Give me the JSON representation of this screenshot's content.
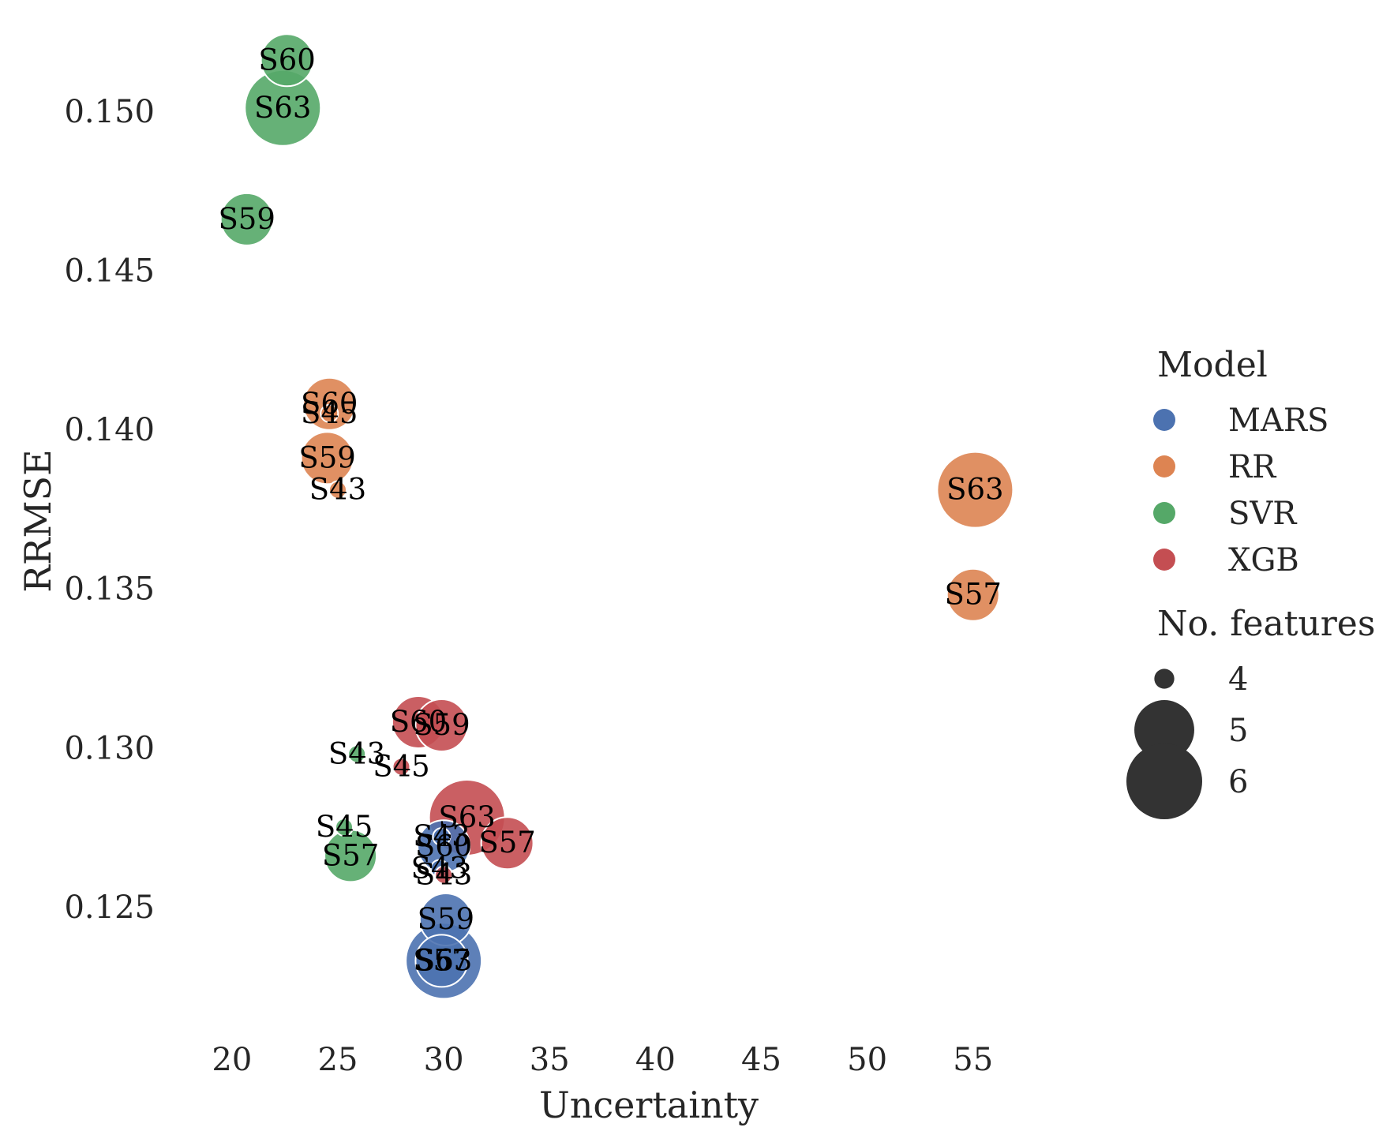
{
  "chart_data": {
    "type": "scatter",
    "xlabel": "Uncertainty",
    "ylabel": "RRMSE",
    "xlim": [
      16.5,
      59
    ],
    "ylim": [
      0.1215,
      0.1525
    ],
    "xticks": [
      "20",
      "25",
      "30",
      "35",
      "40",
      "45",
      "50",
      "55"
    ],
    "yticks": [
      "0.125",
      "0.130",
      "0.135",
      "0.140",
      "0.145",
      "0.150"
    ],
    "grid": false,
    "legend": {
      "placement": "right",
      "hue_title": "Model",
      "size_title": "No. features",
      "models": [
        {
          "name": "MARS",
          "color": "#4c72b0"
        },
        {
          "name": "RR",
          "color": "#dd8452"
        },
        {
          "name": "SVR",
          "color": "#55a868"
        },
        {
          "name": "XGB",
          "color": "#c44e52"
        }
      ],
      "sizes": [
        {
          "label": "4",
          "value": 4
        },
        {
          "label": "5",
          "value": 5
        },
        {
          "label": "6",
          "value": 6
        }
      ]
    },
    "series": [
      {
        "name": "MARS",
        "points": [
          {
            "label": "S43",
            "x": 29.9,
            "y": 0.1272,
            "features": 4
          },
          {
            "label": "S60",
            "x": 30.0,
            "y": 0.1269,
            "features": 5
          },
          {
            "label": "S43",
            "x": 29.8,
            "y": 0.1262,
            "features": 4
          },
          {
            "label": "S59",
            "x": 30.1,
            "y": 0.1246,
            "features": 5
          },
          {
            "label": "S63",
            "x": 30.0,
            "y": 0.1233,
            "features": 6
          },
          {
            "label": "S57",
            "x": 29.9,
            "y": 0.1233,
            "features": 5
          }
        ]
      },
      {
        "name": "RR",
        "points": [
          {
            "label": "S60",
            "x": 24.6,
            "y": 0.1408,
            "features": 5
          },
          {
            "label": "S45",
            "x": 24.6,
            "y": 0.1405,
            "features": 4
          },
          {
            "label": "S59",
            "x": 24.5,
            "y": 0.1391,
            "features": 5
          },
          {
            "label": "S43",
            "x": 25.0,
            "y": 0.1381,
            "features": 4
          },
          {
            "label": "S63",
            "x": 55.1,
            "y": 0.1381,
            "features": 6
          },
          {
            "label": "S57",
            "x": 55.0,
            "y": 0.1348,
            "features": 5
          }
        ]
      },
      {
        "name": "SVR",
        "points": [
          {
            "label": "S60",
            "x": 22.6,
            "y": 0.1516,
            "features": 5
          },
          {
            "label": "S63",
            "x": 22.4,
            "y": 0.1501,
            "features": 6
          },
          {
            "label": "S59",
            "x": 20.7,
            "y": 0.1466,
            "features": 5
          },
          {
            "label": "S43",
            "x": 25.9,
            "y": 0.1298,
            "features": 4
          },
          {
            "label": "S45",
            "x": 25.3,
            "y": 0.1275,
            "features": 4
          },
          {
            "label": "S57",
            "x": 25.6,
            "y": 0.1266,
            "features": 5
          }
        ]
      },
      {
        "name": "XGB",
        "points": [
          {
            "label": "S60",
            "x": 28.8,
            "y": 0.1308,
            "features": 5
          },
          {
            "label": "S59",
            "x": 29.9,
            "y": 0.1307,
            "features": 5
          },
          {
            "label": "S45",
            "x": 28.0,
            "y": 0.1294,
            "features": 4
          },
          {
            "label": "S63",
            "x": 31.1,
            "y": 0.1278,
            "features": 6
          },
          {
            "label": "S57",
            "x": 33.0,
            "y": 0.127,
            "features": 5
          },
          {
            "label": "S43",
            "x": 30.0,
            "y": 0.126,
            "features": 4
          }
        ]
      }
    ]
  }
}
